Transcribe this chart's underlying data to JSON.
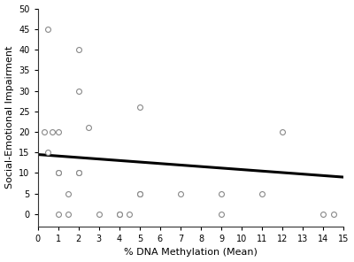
{
  "scatter_x": [
    0.3,
    0.5,
    0.7,
    1.0,
    1.0,
    1.5,
    2.0,
    2.0,
    2.5,
    1.0,
    1.5,
    2.0,
    3.0,
    4.0,
    4.5,
    5.0,
    5.0,
    7.0,
    9.0,
    9.0,
    11.0,
    12.0,
    14.0,
    14.5,
    0.5,
    1.0,
    2.0,
    4.0,
    5.0
  ],
  "scatter_y": [
    20,
    45,
    20,
    20,
    10,
    5,
    10,
    30,
    21,
    0,
    0,
    10,
    0,
    0,
    0,
    26,
    5,
    5,
    5,
    0,
    5,
    20,
    0,
    0,
    15,
    10,
    40,
    0,
    5
  ],
  "line_x": [
    0,
    15
  ],
  "line_y": [
    14.5,
    9.0
  ],
  "xlabel": "% DNA Methylation (Mean)",
  "ylabel": "Social-Emotional Impairment",
  "xlim": [
    0,
    15
  ],
  "ylim": [
    -3,
    50
  ],
  "xticks": [
    0,
    1,
    2,
    3,
    4,
    5,
    6,
    7,
    8,
    9,
    10,
    11,
    12,
    13,
    14,
    15
  ],
  "yticks": [
    0,
    5,
    10,
    15,
    20,
    25,
    30,
    35,
    40,
    45,
    50
  ],
  "marker_size": 18,
  "marker_color": "white",
  "marker_edge_color": "#888888",
  "marker_edge_width": 0.8,
  "line_color": "black",
  "line_width": 2.2,
  "bg_color": "white",
  "xlabel_fontsize": 8,
  "ylabel_fontsize": 8,
  "tick_fontsize": 7
}
